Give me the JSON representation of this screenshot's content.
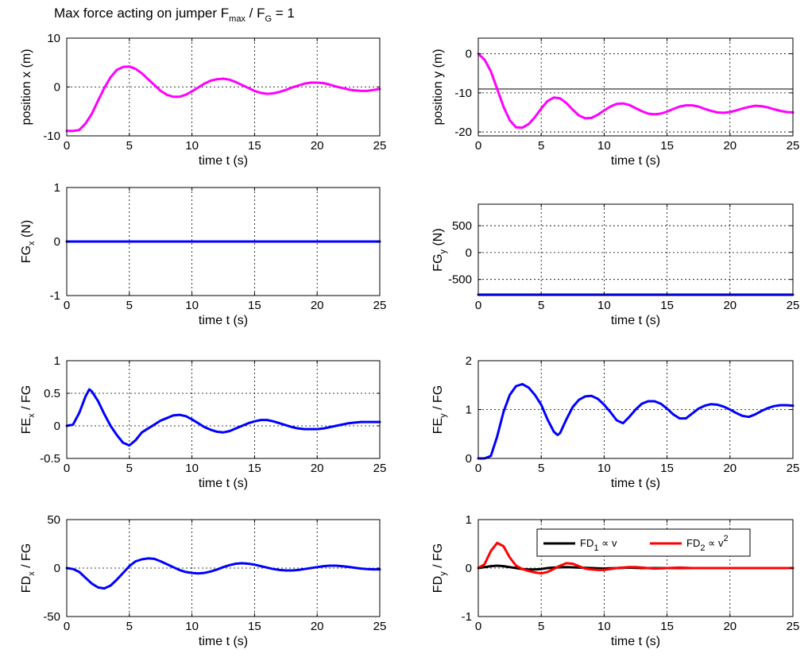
{
  "figure": {
    "title_prefix": "Max force acting on jumper  F",
    "title_sub1": "max",
    "title_mid": " / F",
    "title_sub2": "G",
    "title_value": " =    1"
  },
  "chart_data": [
    {
      "id": "pos-x",
      "type": "line",
      "ylabel": [
        {
          "t": "position  x  (m)"
        }
      ],
      "xlabel": "time  t  (s)",
      "xlim": [
        0,
        25
      ],
      "ylim": [
        -10,
        10
      ],
      "xticks": [
        0,
        5,
        10,
        15,
        20,
        25
      ],
      "yticks": [
        -10,
        0,
        10
      ],
      "grid": true,
      "series": [
        {
          "color": "#ff00ff",
          "x": [
            0,
            0.5,
            1,
            1.5,
            2,
            2.5,
            3,
            3.5,
            4,
            4.5,
            5,
            5.5,
            6,
            6.5,
            7,
            7.5,
            8,
            8.5,
            9,
            9.5,
            10,
            10.5,
            11,
            11.5,
            12,
            12.5,
            13,
            13.5,
            14,
            14.5,
            15,
            15.5,
            16,
            16.5,
            17,
            17.5,
            18,
            18.5,
            19,
            19.5,
            20,
            20.5,
            21,
            21.5,
            22,
            22.5,
            23,
            23.5,
            24,
            24.5,
            25
          ],
          "y": [
            -9,
            -9,
            -8.8,
            -7.5,
            -5.5,
            -2.8,
            -0.2,
            2,
            3.5,
            4.1,
            4.2,
            3.7,
            2.8,
            1.6,
            0.4,
            -0.8,
            -1.6,
            -2,
            -2,
            -1.6,
            -0.9,
            -0.1,
            0.7,
            1.3,
            1.6,
            1.7,
            1.5,
            1,
            0.4,
            -0.2,
            -0.8,
            -1.2,
            -1.4,
            -1.3,
            -1,
            -0.6,
            -0.1,
            0.3,
            0.7,
            0.9,
            0.9,
            0.8,
            0.5,
            0.1,
            -0.2,
            -0.5,
            -0.7,
            -0.8,
            -0.8,
            -0.6,
            -0.4
          ]
        }
      ]
    },
    {
      "id": "pos-y",
      "type": "line",
      "ylabel": [
        {
          "t": "position  y  (m)"
        }
      ],
      "xlabel": "time  t  (s)",
      "xlim": [
        0,
        25
      ],
      "ylim": [
        -21,
        4
      ],
      "xticks": [
        0,
        5,
        10,
        15,
        20,
        25
      ],
      "yticks": [
        -20,
        -10,
        0
      ],
      "hlines": [
        -9
      ],
      "grid": true,
      "series": [
        {
          "color": "#ff00ff",
          "x": [
            0,
            0.5,
            1,
            1.5,
            2,
            2.5,
            3,
            3.5,
            4,
            4.5,
            5,
            5.5,
            6,
            6.5,
            7,
            7.5,
            8,
            8.5,
            9,
            9.5,
            10,
            10.5,
            11,
            11.5,
            12,
            12.5,
            13,
            13.5,
            14,
            14.5,
            15,
            15.5,
            16,
            16.5,
            17,
            17.5,
            18,
            18.5,
            19,
            19.5,
            20,
            20.5,
            21,
            21.5,
            22,
            22.5,
            23,
            23.5,
            24,
            24.5,
            25
          ],
          "y": [
            0,
            -1.5,
            -4.5,
            -9,
            -13.5,
            -17,
            -18.8,
            -18.9,
            -18,
            -16.2,
            -14,
            -12.1,
            -11.2,
            -11.4,
            -12.6,
            -14.3,
            -15.8,
            -16.5,
            -16.4,
            -15.6,
            -14.5,
            -13.5,
            -12.8,
            -12.7,
            -13.1,
            -13.9,
            -14.7,
            -15.3,
            -15.5,
            -15.3,
            -14.8,
            -14.1,
            -13.5,
            -13.2,
            -13.2,
            -13.5,
            -14.1,
            -14.6,
            -15,
            -15.1,
            -14.9,
            -14.5,
            -14,
            -13.6,
            -13.3,
            -13.4,
            -13.7,
            -14.2,
            -14.6,
            -14.9,
            -15
          ]
        }
      ]
    },
    {
      "id": "fg-x",
      "type": "line",
      "ylabel": [
        {
          "t": "FG"
        },
        {
          "t": "x",
          "sub": true
        },
        {
          "t": " (N)"
        }
      ],
      "xlabel": "time  t  (s)",
      "xlim": [
        0,
        25
      ],
      "ylim": [
        -1,
        1
      ],
      "xticks": [
        0,
        5,
        10,
        15,
        20,
        25
      ],
      "yticks": [
        -1,
        0,
        1
      ],
      "grid": true,
      "series": [
        {
          "color": "#0000ff",
          "x": [
            0,
            25
          ],
          "y": [
            0,
            0
          ]
        }
      ]
    },
    {
      "id": "fg-y",
      "type": "line",
      "ylabel": [
        {
          "t": "FG"
        },
        {
          "t": "y",
          "sub": true
        },
        {
          "t": " (N)"
        }
      ],
      "xlabel": "time  t  (s)",
      "xlim": [
        0,
        25
      ],
      "ylim": [
        -800,
        900
      ],
      "xticks": [
        0,
        5,
        10,
        15,
        20,
        25
      ],
      "yticks": [
        -500,
        0,
        500
      ],
      "grid": true,
      "series": [
        {
          "color": "#0000ff",
          "x": [
            0,
            25
          ],
          "y": [
            -784,
            -784
          ]
        }
      ]
    },
    {
      "id": "fe-x",
      "type": "line",
      "ylabel": [
        {
          "t": "FE"
        },
        {
          "t": "x",
          "sub": true
        },
        {
          "t": "  / FG"
        }
      ],
      "xlabel": "time  t  (s)",
      "xlim": [
        0,
        25
      ],
      "ylim": [
        -0.5,
        1
      ],
      "xticks": [
        0,
        5,
        10,
        15,
        20,
        25
      ],
      "yticks": [
        -0.5,
        0,
        0.5,
        1
      ],
      "smallTicks": true,
      "grid": true,
      "series": [
        {
          "color": "#0000ff",
          "x": [
            0,
            0.5,
            1,
            1.5,
            1.8,
            2,
            2.5,
            3,
            3.5,
            4,
            4.5,
            5,
            5.5,
            6,
            6.5,
            7,
            7.5,
            8,
            8.5,
            9,
            9.5,
            10,
            10.5,
            11,
            11.5,
            12,
            12.5,
            13,
            13.5,
            14,
            14.5,
            15,
            15.5,
            16,
            16.5,
            17,
            17.5,
            18,
            18.5,
            19,
            19.5,
            20,
            20.5,
            21,
            21.5,
            22,
            22.5,
            23,
            23.5,
            24,
            24.5,
            25
          ],
          "y": [
            0,
            0.02,
            0.2,
            0.45,
            0.56,
            0.53,
            0.38,
            0.18,
            0,
            -0.14,
            -0.26,
            -0.3,
            -0.22,
            -0.1,
            -0.04,
            0.02,
            0.08,
            0.12,
            0.16,
            0.17,
            0.15,
            0.1,
            0.04,
            -0.02,
            -0.06,
            -0.09,
            -0.1,
            -0.08,
            -0.04,
            0,
            0.04,
            0.07,
            0.09,
            0.09,
            0.07,
            0.04,
            0.01,
            -0.02,
            -0.04,
            -0.05,
            -0.05,
            -0.05,
            -0.04,
            -0.02,
            0,
            0.02,
            0.04,
            0.05,
            0.06,
            0.06,
            0.06,
            0.06
          ]
        }
      ]
    },
    {
      "id": "fe-y",
      "type": "line",
      "ylabel": [
        {
          "t": "FE"
        },
        {
          "t": "y",
          "sub": true
        },
        {
          "t": "  / FG"
        }
      ],
      "xlabel": "time  t  (s)",
      "xlim": [
        0,
        25
      ],
      "ylim": [
        0,
        2
      ],
      "xticks": [
        0,
        5,
        10,
        15,
        20,
        25
      ],
      "yticks": [
        0,
        1,
        2
      ],
      "grid": true,
      "series": [
        {
          "color": "#0000ff",
          "x": [
            0,
            0.5,
            1,
            1.5,
            2,
            2.5,
            3,
            3.5,
            4,
            4.5,
            5,
            5.5,
            6,
            6.3,
            6.5,
            7,
            7.5,
            8,
            8.5,
            9,
            9.5,
            10,
            10.5,
            11,
            11.5,
            12,
            12.5,
            13,
            13.5,
            14,
            14.5,
            15,
            15.5,
            16,
            16.5,
            17,
            17.5,
            18,
            18.5,
            19,
            19.5,
            20,
            20.5,
            21,
            21.5,
            22,
            22.5,
            23,
            23.5,
            24,
            24.5,
            25
          ],
          "y": [
            0,
            0,
            0.05,
            0.45,
            0.95,
            1.3,
            1.48,
            1.52,
            1.45,
            1.3,
            1.1,
            0.8,
            0.55,
            0.48,
            0.52,
            0.8,
            1.05,
            1.2,
            1.27,
            1.28,
            1.22,
            1.1,
            0.95,
            0.78,
            0.72,
            0.85,
            1.0,
            1.12,
            1.17,
            1.17,
            1.12,
            1.02,
            0.9,
            0.82,
            0.82,
            0.92,
            1.02,
            1.08,
            1.11,
            1.1,
            1.06,
            1.0,
            0.93,
            0.87,
            0.85,
            0.9,
            0.97,
            1.03,
            1.07,
            1.09,
            1.09,
            1.08
          ]
        }
      ]
    },
    {
      "id": "fd-x",
      "type": "line",
      "ylabel": [
        {
          "t": "FD"
        },
        {
          "t": "x",
          "sub": true
        },
        {
          "t": "  / FG"
        }
      ],
      "xlabel": "time  t  (s)",
      "xlim": [
        0,
        25
      ],
      "ylim": [
        -50,
        50
      ],
      "xticks": [
        0,
        5,
        10,
        15,
        20,
        25
      ],
      "yticks": [
        -50,
        0,
        50
      ],
      "grid": true,
      "series": [
        {
          "color": "#0000ff",
          "x": [
            0,
            0.5,
            1,
            1.5,
            2,
            2.5,
            3,
            3.5,
            4,
            4.5,
            5,
            5.5,
            6,
            6.5,
            7,
            7.5,
            8,
            8.5,
            9,
            9.5,
            10,
            10.5,
            11,
            11.5,
            12,
            12.5,
            13,
            13.5,
            14,
            14.5,
            15,
            15.5,
            16,
            16.5,
            17,
            17.5,
            18,
            18.5,
            19,
            19.5,
            20,
            20.5,
            21,
            21.5,
            22,
            22.5,
            23,
            23.5,
            24,
            24.5,
            25
          ],
          "y": [
            0,
            -1,
            -4,
            -10,
            -16,
            -20,
            -21,
            -18,
            -12,
            -5,
            2,
            7,
            9,
            10,
            9.5,
            7,
            4,
            1,
            -2,
            -4,
            -5,
            -5.5,
            -5,
            -3.5,
            -1.5,
            1,
            3,
            4.5,
            5,
            4.5,
            3.5,
            2,
            0.5,
            -1,
            -2,
            -2.5,
            -2.5,
            -2,
            -1,
            0,
            1,
            2,
            2.5,
            2.5,
            2,
            1.2,
            0.3,
            -0.5,
            -1,
            -1.3,
            -1.3
          ]
        }
      ]
    },
    {
      "id": "fd-y",
      "type": "line",
      "ylabel": [
        {
          "t": "FD"
        },
        {
          "t": "y",
          "sub": true
        },
        {
          "t": "  / FG"
        }
      ],
      "xlabel": "time  t  (s)",
      "xlim": [
        0,
        25
      ],
      "ylim": [
        -1,
        1
      ],
      "xticks": [
        0,
        5,
        10,
        15,
        20,
        25
      ],
      "yticks": [
        -1,
        0,
        1
      ],
      "grid": true,
      "legend": {
        "placement": "top-right",
        "items": [
          {
            "color": "#000000",
            "parts": [
              {
                "t": "FD"
              },
              {
                "t": "1",
                "sub": true
              },
              {
                "t": " ∝ v"
              }
            ]
          },
          {
            "color": "#ff0000",
            "parts": [
              {
                "t": "FD"
              },
              {
                "t": "2",
                "sub": true
              },
              {
                "t": " ∝ v"
              },
              {
                "t": "2",
                "sup": true
              }
            ]
          }
        ]
      },
      "series": [
        {
          "name": "FD₁ ∝ v",
          "color": "#000000",
          "x": [
            0,
            0.5,
            1,
            1.5,
            2,
            2.5,
            3,
            3.5,
            4,
            4.5,
            5,
            5.5,
            6,
            7,
            8,
            9,
            10,
            11,
            12,
            13,
            14,
            15,
            16,
            17,
            18,
            19,
            20,
            21,
            22,
            23,
            24,
            25
          ],
          "y": [
            0,
            0.02,
            0.04,
            0.05,
            0.04,
            0.02,
            0,
            -0.02,
            -0.03,
            -0.03,
            -0.02,
            0,
            0.01,
            0.02,
            0.01,
            0,
            -0.01,
            0,
            0.01,
            0,
            0,
            0,
            0,
            0,
            0,
            0,
            0,
            0,
            0,
            0,
            0,
            0
          ]
        },
        {
          "name": "FD₂ ∝ v²",
          "color": "#ff0000",
          "x": [
            0,
            0.5,
            1,
            1.5,
            2,
            2.5,
            3,
            3.5,
            4,
            4.5,
            5,
            5.5,
            6,
            6.5,
            7,
            7.5,
            8,
            8.5,
            9,
            9.5,
            10,
            10.5,
            11,
            11.5,
            12,
            12.5,
            13,
            13.5,
            14,
            15,
            16,
            17,
            18,
            19,
            20,
            21,
            22,
            23,
            24,
            25
          ],
          "y": [
            0,
            0.08,
            0.35,
            0.52,
            0.45,
            0.22,
            0.05,
            -0.02,
            -0.06,
            -0.09,
            -0.11,
            -0.08,
            -0.02,
            0.05,
            0.1,
            0.09,
            0.04,
            -0.01,
            -0.03,
            -0.04,
            -0.04,
            -0.02,
            0,
            0.01,
            0.02,
            0.02,
            0.01,
            0,
            -0.01,
            0,
            0.01,
            0,
            0,
            0,
            0,
            0,
            0,
            0,
            0,
            0
          ]
        }
      ]
    }
  ]
}
